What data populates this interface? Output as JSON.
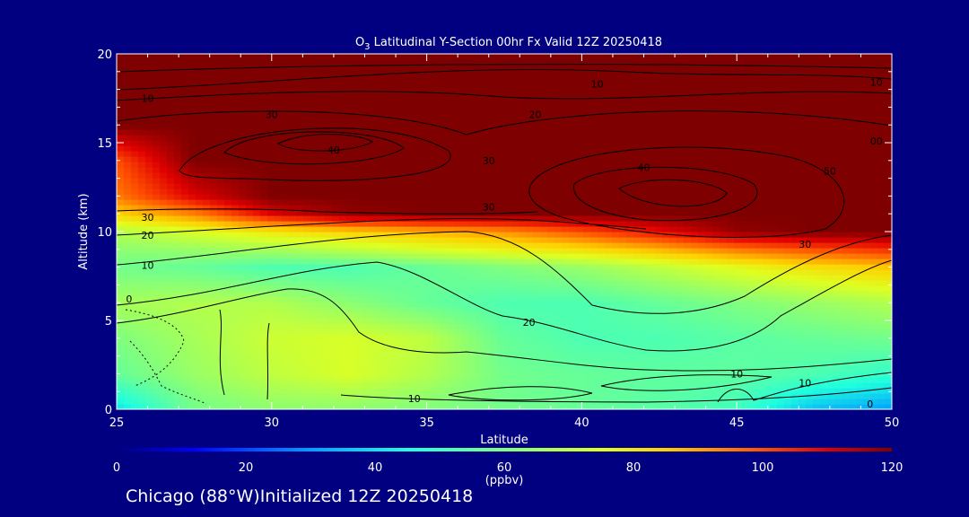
{
  "chart_data": {
    "type": "heatmap",
    "title": {
      "main": "O",
      "sub": "3",
      "rest": " Latitudinal Y-Section 00hr  Fx Valid 12Z 20250418"
    },
    "xlabel": "Latitude",
    "ylabel": "Altitude (km)",
    "xlim": [
      25,
      50
    ],
    "ylim": [
      0,
      20
    ],
    "xticks": [
      25,
      30,
      35,
      40,
      45,
      50
    ],
    "yticks": [
      0,
      5,
      10,
      15,
      20
    ],
    "colorbar": {
      "label": "(ppbv)",
      "range": [
        0,
        120
      ],
      "ticks": [
        0,
        20,
        40,
        60,
        80,
        100,
        120
      ],
      "stops": [
        {
          "v": 0,
          "c": "#00007f"
        },
        {
          "v": 12,
          "c": "#0000ff"
        },
        {
          "v": 30,
          "c": "#00a0ff"
        },
        {
          "v": 45,
          "c": "#20ffdf"
        },
        {
          "v": 60,
          "c": "#7fff7f"
        },
        {
          "v": 75,
          "c": "#dfff20"
        },
        {
          "v": 85,
          "c": "#ffd000"
        },
        {
          "v": 100,
          "c": "#ff5000"
        },
        {
          "v": 110,
          "c": "#e00000"
        },
        {
          "v": 120,
          "c": "#7f0000"
        }
      ]
    },
    "field": {
      "lats": [
        25,
        27.5,
        30,
        32.5,
        35,
        37.5,
        40,
        42.5,
        45,
        47.5,
        50
      ],
      "alts": [
        0,
        2,
        4,
        6,
        8,
        9,
        10,
        11,
        12,
        14,
        16,
        20
      ],
      "values": [
        [
          40,
          58,
          62,
          62,
          60,
          58,
          56,
          54,
          50,
          35,
          30
        ],
        [
          56,
          64,
          70,
          74,
          68,
          58,
          56,
          55,
          55,
          52,
          48
        ],
        [
          60,
          66,
          72,
          74,
          70,
          56,
          52,
          52,
          54,
          56,
          58
        ],
        [
          66,
          68,
          68,
          62,
          56,
          52,
          52,
          56,
          60,
          64,
          68
        ],
        [
          58,
          56,
          52,
          52,
          56,
          60,
          64,
          70,
          76,
          82,
          86
        ],
        [
          62,
          64,
          66,
          70,
          74,
          78,
          82,
          88,
          95,
          100,
          104
        ],
        [
          68,
          74,
          80,
          84,
          88,
          92,
          100,
          108,
          118,
          120,
          120
        ],
        [
          84,
          94,
          110,
          118,
          120,
          120,
          120,
          120,
          120,
          120,
          120
        ],
        [
          95,
          110,
          120,
          120,
          120,
          120,
          120,
          120,
          120,
          120,
          120
        ],
        [
          100,
          120,
          120,
          120,
          120,
          120,
          120,
          120,
          120,
          120,
          120
        ],
        [
          120,
          120,
          120,
          120,
          120,
          120,
          120,
          120,
          120,
          120,
          120
        ],
        [
          120,
          120,
          120,
          120,
          120,
          120,
          120,
          120,
          120,
          120,
          120
        ]
      ]
    },
    "contour_labels": [
      {
        "text": "10",
        "x": 26.0,
        "y": 17.5
      },
      {
        "text": "30",
        "x": 30.0,
        "y": 16.6
      },
      {
        "text": "40",
        "x": 32.0,
        "y": 14.6
      },
      {
        "text": "30",
        "x": 37.0,
        "y": 14.0
      },
      {
        "text": "10",
        "x": 40.5,
        "y": 18.3
      },
      {
        "text": "20",
        "x": 38.5,
        "y": 16.6
      },
      {
        "text": "40",
        "x": 42.0,
        "y": 13.6
      },
      {
        "text": "10",
        "x": 49.5,
        "y": 18.4
      },
      {
        "text": "00",
        "x": 49.5,
        "y": 15.1
      },
      {
        "text": "50",
        "x": 48.0,
        "y": 13.4
      },
      {
        "text": "30",
        "x": 26.0,
        "y": 10.8
      },
      {
        "text": "20",
        "x": 26.0,
        "y": 9.8
      },
      {
        "text": "10",
        "x": 26.0,
        "y": 8.1
      },
      {
        "text": "30",
        "x": 37.0,
        "y": 11.4
      },
      {
        "text": "30",
        "x": 47.2,
        "y": 9.3
      },
      {
        "text": "0",
        "x": 25.4,
        "y": 6.2
      },
      {
        "text": "20",
        "x": 38.3,
        "y": 4.9
      },
      {
        "text": "10",
        "x": 45.0,
        "y": 2.0
      },
      {
        "text": "10",
        "x": 47.2,
        "y": 1.5
      },
      {
        "text": "10",
        "x": 34.6,
        "y": 0.6
      },
      {
        "text": "0",
        "x": 49.3,
        "y": 0.3
      }
    ]
  },
  "footer": {
    "text": "Chicago (88°W)Initialized 12Z 20250418"
  }
}
